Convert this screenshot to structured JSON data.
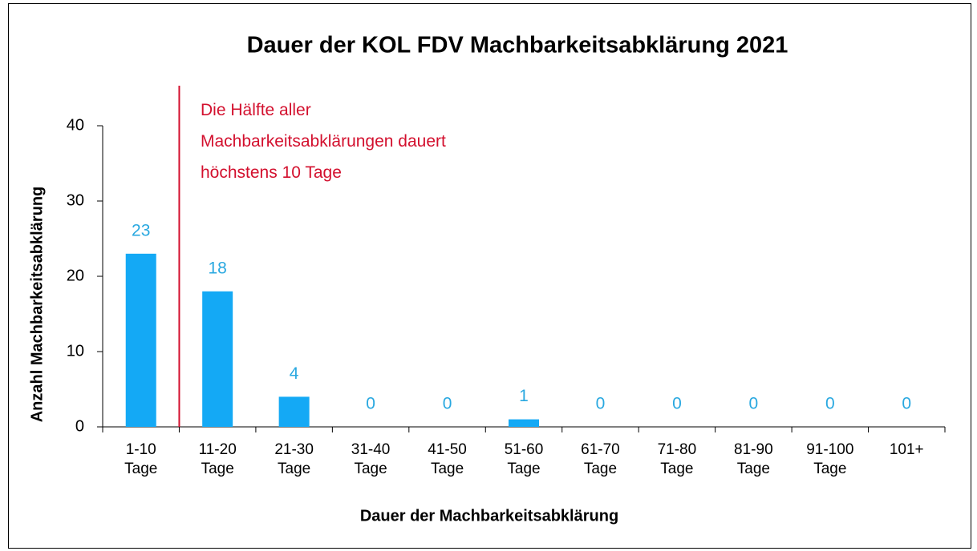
{
  "chart_data": {
    "type": "bar",
    "title": "Dauer der KOL FDV Machbarkeitsabklärung 2021",
    "x_label": "Dauer der Machbarkeitsabklärung",
    "y_label": "Anzahl Machbarkeitsabklärung",
    "annotation": "Die Hälfte aller\nMachbarkeitsabklärungen dauert\nhöchstens 10 Tage",
    "categories": [
      "1-10\nTage",
      "11-20\nTage",
      "21-30\nTage",
      "31-40\nTage",
      "41-50\nTage",
      "51-60\nTage",
      "61-70\nTage",
      "71-80\nTage",
      "81-90\nTage",
      "91-100\nTage",
      "101+"
    ],
    "values": [
      23,
      18,
      4,
      0,
      0,
      1,
      0,
      0,
      0,
      0,
      0
    ],
    "color": "#14a9f5",
    "label_color": "#29a8e0",
    "annotation_color": "#d3102e",
    "ylim": [
      0,
      40
    ],
    "yticks": [
      0,
      10,
      20,
      30,
      40
    ],
    "grid": false
  }
}
